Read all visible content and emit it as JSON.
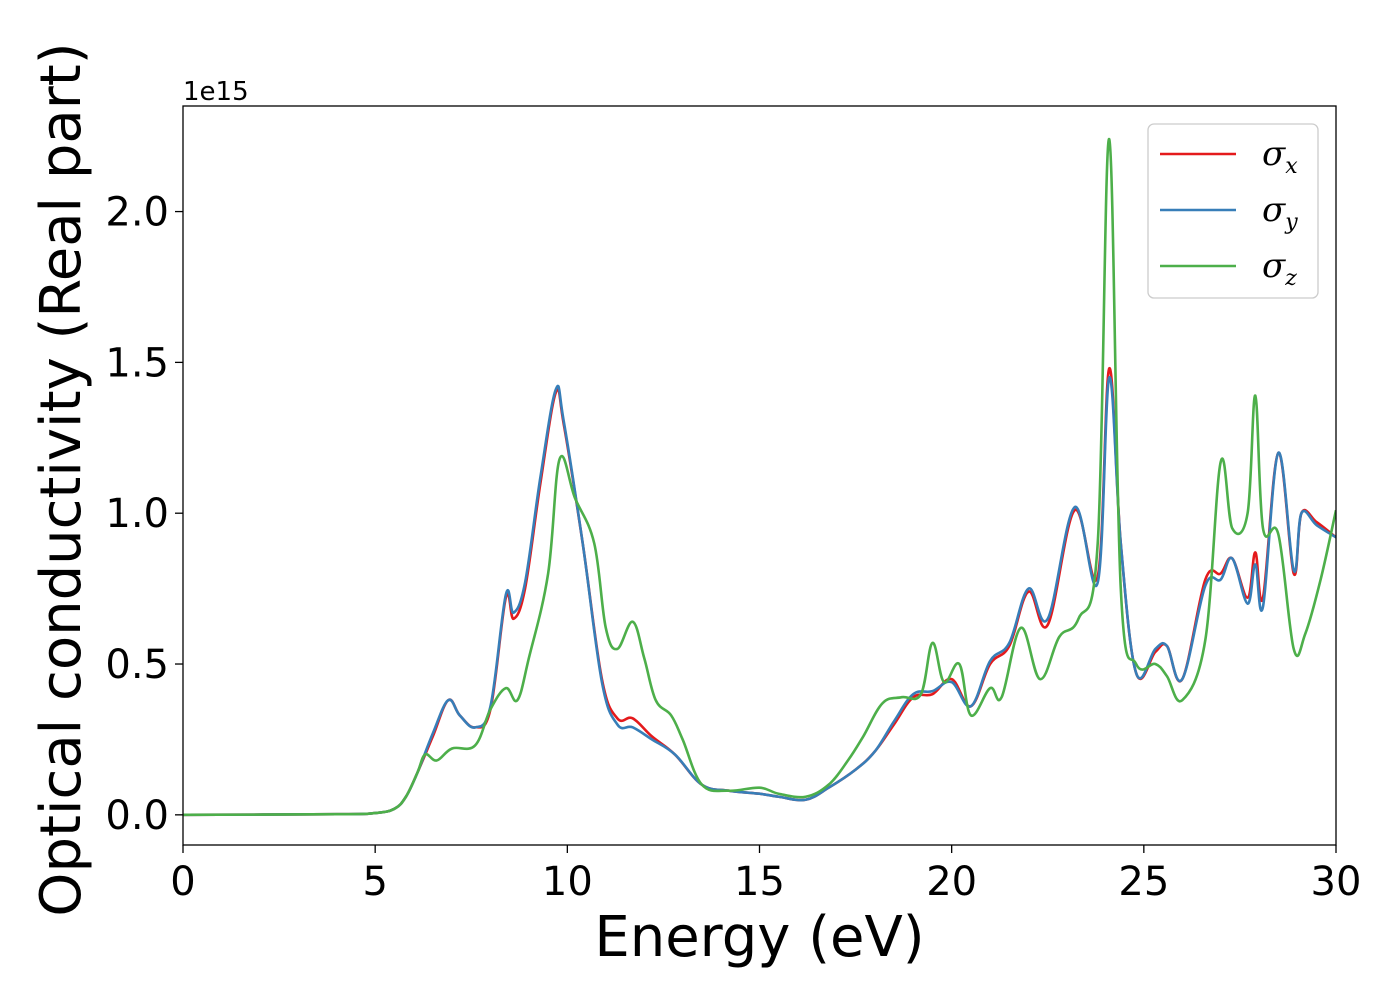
{
  "chart_data": {
    "type": "line",
    "title": "",
    "xlabel": "Energy (eV)",
    "ylabel": "Optical conductivity (Real part)",
    "y_offset_label": "1e15",
    "xlim": [
      0,
      30
    ],
    "ylim": [
      -0.1,
      2.35
    ],
    "xticks": [
      0,
      5,
      10,
      15,
      20,
      25,
      30
    ],
    "xtick_labels": [
      "0",
      "5",
      "10",
      "15",
      "20",
      "25",
      "30"
    ],
    "yticks": [
      0.0,
      0.5,
      1.0,
      1.5,
      2.0
    ],
    "ytick_labels": [
      "0.0",
      "0.5",
      "1.0",
      "1.5",
      "2.0"
    ],
    "grid": false,
    "legend_position": "top-right",
    "series": [
      {
        "name": "σx",
        "name_base": "σ",
        "name_sub": "x",
        "color": "#e41a1c",
        "x": [
          0,
          4,
          5,
          5.5,
          5.8,
          6.1,
          6.5,
          6.9,
          7.2,
          7.6,
          8.0,
          8.4,
          8.6,
          8.9,
          9.3,
          9.7,
          9.9,
          10.4,
          10.9,
          11.3,
          11.7,
          12.2,
          12.8,
          13.5,
          14.2,
          15.0,
          15.5,
          16.2,
          16.8,
          17.5,
          18.0,
          18.5,
          19.0,
          19.5,
          20.0,
          20.5,
          21.0,
          21.5,
          22.0,
          22.5,
          23.2,
          23.8,
          24.1,
          24.4,
          24.8,
          25.3,
          25.6,
          26.0,
          26.6,
          27.0,
          27.3,
          27.7,
          27.9,
          28.1,
          28.5,
          28.9,
          29.1,
          29.5,
          30.0
        ],
        "y": [
          0.0,
          0.002,
          0.006,
          0.02,
          0.06,
          0.14,
          0.26,
          0.38,
          0.33,
          0.29,
          0.35,
          0.72,
          0.65,
          0.75,
          1.1,
          1.4,
          1.3,
          0.9,
          0.45,
          0.32,
          0.32,
          0.26,
          0.2,
          0.1,
          0.08,
          0.07,
          0.06,
          0.05,
          0.09,
          0.15,
          0.21,
          0.3,
          0.39,
          0.4,
          0.45,
          0.36,
          0.5,
          0.56,
          0.74,
          0.63,
          1.01,
          0.79,
          1.48,
          0.9,
          0.47,
          0.54,
          0.56,
          0.45,
          0.78,
          0.8,
          0.85,
          0.72,
          0.87,
          0.72,
          1.2,
          0.8,
          1.0,
          0.97,
          0.92
        ]
      },
      {
        "name": "σy",
        "name_base": "σ",
        "name_sub": "y",
        "color": "#377eb8",
        "x": [
          0,
          4,
          5,
          5.5,
          5.8,
          6.1,
          6.5,
          6.9,
          7.2,
          7.6,
          8.0,
          8.4,
          8.6,
          8.9,
          9.3,
          9.7,
          9.9,
          10.4,
          10.9,
          11.3,
          11.7,
          12.2,
          12.8,
          13.5,
          14.2,
          15.0,
          15.5,
          16.2,
          16.8,
          17.5,
          18.0,
          18.5,
          19.0,
          19.5,
          20.0,
          20.5,
          21.0,
          21.5,
          22.0,
          22.5,
          23.2,
          23.8,
          24.1,
          24.4,
          24.8,
          25.3,
          25.6,
          26.0,
          26.6,
          27.0,
          27.3,
          27.7,
          27.9,
          28.1,
          28.5,
          28.9,
          29.1,
          29.5,
          30.0
        ],
        "y": [
          0.0,
          0.002,
          0.006,
          0.02,
          0.06,
          0.14,
          0.27,
          0.38,
          0.33,
          0.29,
          0.36,
          0.73,
          0.67,
          0.77,
          1.12,
          1.41,
          1.31,
          0.9,
          0.44,
          0.3,
          0.29,
          0.25,
          0.2,
          0.1,
          0.08,
          0.07,
          0.06,
          0.05,
          0.09,
          0.15,
          0.21,
          0.31,
          0.4,
          0.41,
          0.44,
          0.36,
          0.51,
          0.57,
          0.75,
          0.65,
          1.02,
          0.77,
          1.45,
          0.9,
          0.47,
          0.55,
          0.56,
          0.45,
          0.76,
          0.78,
          0.85,
          0.7,
          0.83,
          0.69,
          1.2,
          0.81,
          1.0,
          0.96,
          0.92
        ]
      },
      {
        "name": "σz",
        "name_base": "σ",
        "name_sub": "z",
        "color": "#4daf4a",
        "x": [
          0,
          4,
          5,
          5.5,
          5.8,
          6.1,
          6.3,
          6.6,
          7.0,
          7.6,
          8.0,
          8.4,
          8.7,
          9.0,
          9.5,
          9.8,
          10.2,
          10.7,
          11.0,
          11.3,
          11.7,
          12.0,
          12.3,
          12.7,
          13.0,
          13.5,
          14.2,
          15.0,
          15.5,
          16.2,
          16.8,
          17.3,
          17.7,
          18.2,
          18.7,
          19.2,
          19.5,
          19.8,
          20.2,
          20.5,
          21.0,
          21.3,
          21.8,
          22.3,
          22.8,
          23.3,
          23.8,
          24.1,
          24.4,
          24.8,
          25.3,
          25.6,
          26.0,
          26.6,
          27.0,
          27.3,
          27.7,
          27.9,
          28.1,
          28.5,
          28.9,
          29.2,
          29.6,
          30.0
        ],
        "y": [
          0.0,
          0.002,
          0.006,
          0.02,
          0.06,
          0.14,
          0.2,
          0.18,
          0.22,
          0.23,
          0.35,
          0.42,
          0.38,
          0.52,
          0.8,
          1.18,
          1.05,
          0.9,
          0.62,
          0.55,
          0.64,
          0.52,
          0.38,
          0.33,
          0.25,
          0.1,
          0.08,
          0.09,
          0.07,
          0.06,
          0.1,
          0.18,
          0.26,
          0.37,
          0.39,
          0.4,
          0.57,
          0.44,
          0.5,
          0.33,
          0.42,
          0.39,
          0.62,
          0.45,
          0.59,
          0.65,
          0.9,
          2.24,
          0.75,
          0.5,
          0.5,
          0.46,
          0.38,
          0.58,
          1.17,
          0.95,
          1.0,
          1.39,
          0.95,
          0.93,
          0.55,
          0.6,
          0.78,
          1.01
        ]
      }
    ]
  }
}
